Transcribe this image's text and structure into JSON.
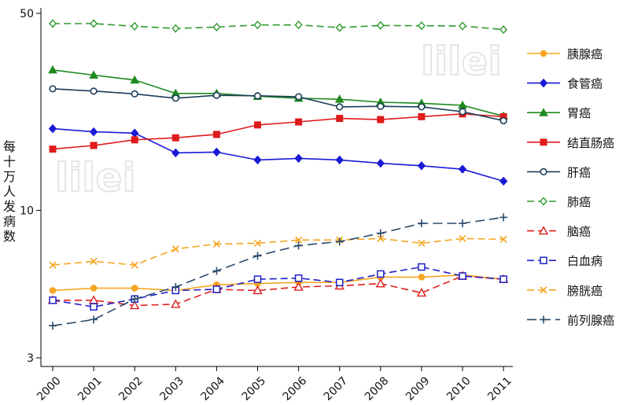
{
  "chart_data": {
    "type": "line",
    "title": "",
    "xlabel": "",
    "ylabel": "每十万人发病数",
    "y_scale": "log",
    "ylim": [
      3,
      50
    ],
    "yticks": [
      3,
      10,
      50
    ],
    "x": [
      "2000",
      "2001",
      "2002",
      "2003",
      "2004",
      "2005",
      "2006",
      "2007",
      "2008",
      "2009",
      "2010",
      "2011"
    ],
    "legend_position": "right",
    "watermark": "lilei",
    "series": [
      {
        "name": "胰腺癌",
        "color": "#f5a623",
        "dash": "solid",
        "marker": "circle-filled",
        "values": [
          5.2,
          5.3,
          5.3,
          5.2,
          5.45,
          5.5,
          5.55,
          5.55,
          5.8,
          5.8,
          5.9,
          5.7
        ]
      },
      {
        "name": "食管癌",
        "color": "#1a1ad6",
        "dash": "solid",
        "marker": "diamond-filled",
        "values": [
          19.5,
          19.0,
          18.8,
          16.0,
          16.1,
          15.1,
          15.3,
          15.1,
          14.7,
          14.4,
          14.0,
          12.7
        ]
      },
      {
        "name": "胃癌",
        "color": "#1e8a1e",
        "dash": "solid",
        "marker": "triangle-filled",
        "values": [
          31.5,
          30.2,
          29.0,
          26.0,
          26.0,
          25.4,
          25.0,
          24.8,
          24.2,
          24.0,
          23.6,
          21.6
        ]
      },
      {
        "name": "结直肠癌",
        "color": "#e01b1b",
        "dash": "solid",
        "marker": "square-filled",
        "values": [
          16.5,
          17.0,
          17.8,
          18.1,
          18.6,
          20.1,
          20.6,
          21.2,
          21.0,
          21.5,
          22.0,
          21.5
        ]
      },
      {
        "name": "肝癌",
        "color": "#1c3d5a",
        "dash": "solid",
        "marker": "circle-hollow",
        "values": [
          27.0,
          26.5,
          25.9,
          25.0,
          25.6,
          25.5,
          25.3,
          23.3,
          23.4,
          23.3,
          22.4,
          20.8
        ]
      },
      {
        "name": "肺癌",
        "color": "#2e9a2e",
        "dash": "dashed",
        "marker": "diamond-hollow",
        "values": [
          46.0,
          46.0,
          45.0,
          44.2,
          44.7,
          45.5,
          45.5,
          44.5,
          45.3,
          45.2,
          45.1,
          43.8
        ]
      },
      {
        "name": "脑癌",
        "color": "#e02020",
        "dash": "dashed",
        "marker": "triangle-hollow",
        "values": [
          4.8,
          4.8,
          4.6,
          4.65,
          5.25,
          5.2,
          5.35,
          5.4,
          5.5,
          5.1,
          5.85,
          5.7
        ]
      },
      {
        "name": "白血病",
        "color": "#2020c8",
        "dash": "dashed",
        "marker": "square-hollow",
        "values": [
          4.8,
          4.55,
          4.85,
          5.2,
          5.25,
          5.7,
          5.75,
          5.55,
          5.95,
          6.3,
          5.85,
          5.7
        ]
      },
      {
        "name": "膀胱癌",
        "color": "#f5a623",
        "dash": "dashed",
        "marker": "x",
        "values": [
          6.4,
          6.6,
          6.4,
          7.3,
          7.6,
          7.65,
          7.85,
          7.85,
          7.95,
          7.65,
          7.95,
          7.9
        ]
      },
      {
        "name": "前列腺癌",
        "color": "#2a4a6a",
        "dash": "longdash",
        "marker": "plus",
        "values": [
          3.9,
          4.1,
          4.85,
          5.35,
          6.1,
          6.9,
          7.5,
          7.75,
          8.3,
          9.0,
          9.0,
          9.45
        ]
      }
    ]
  }
}
